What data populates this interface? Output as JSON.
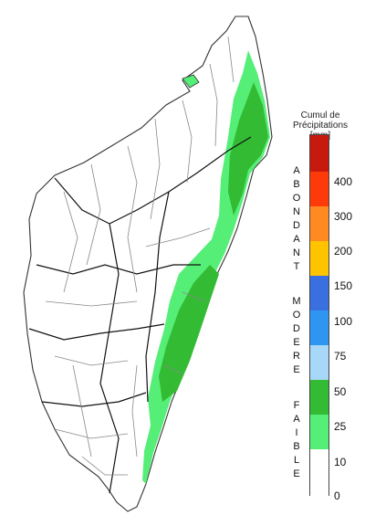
{
  "legend": {
    "title_lines": [
      "Cumul de",
      "Précipitations",
      "[mm]"
    ],
    "ticks": [
      "400",
      "300",
      "200",
      "150",
      "100",
      "75",
      "50",
      "25",
      "10",
      "0"
    ],
    "colors": [
      "#c8190f",
      "#ff3a0a",
      "#ff8a22",
      "#ffc300",
      "#3a6fe0",
      "#2e96f0",
      "#a8d8f8",
      "#33bb33",
      "#55ee77",
      "#ffffff"
    ],
    "categories": [
      {
        "label": "ABONDANT"
      },
      {
        "label": "MODERE"
      },
      {
        "label": "FAIBLE"
      }
    ]
  },
  "map": {
    "land_color": "#ffffff",
    "border_color": "#888888",
    "faible_light_color": "#55ee77",
    "faible_dark_color": "#33bb33"
  }
}
